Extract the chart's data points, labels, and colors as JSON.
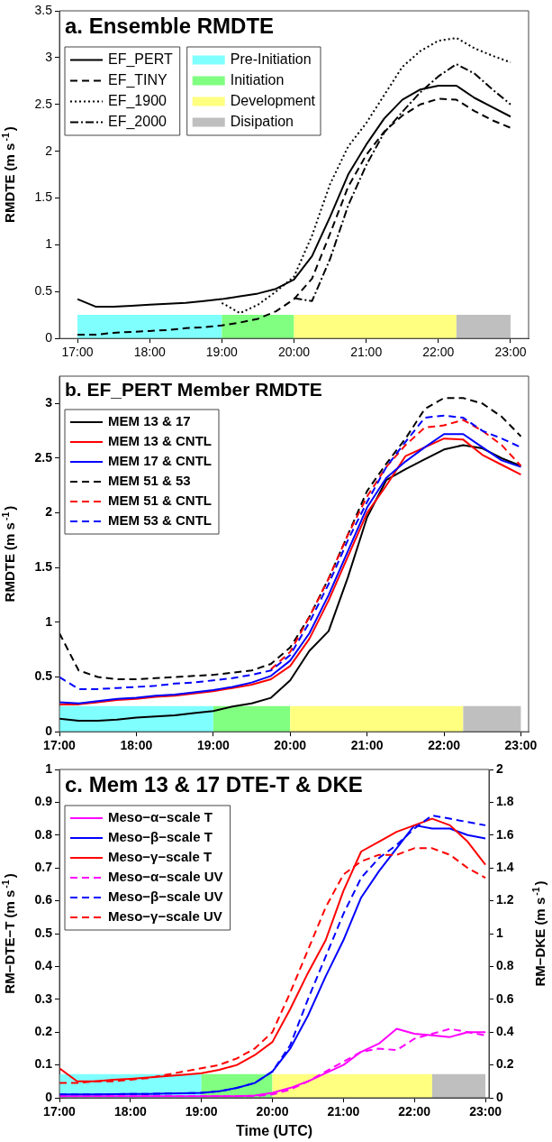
{
  "chart_data": [
    {
      "type": "line",
      "title": "a. Ensemble RMDTE",
      "ylabel": "RMDTE (m s$^{-1}$)",
      "x": [
        17,
        17.25,
        17.5,
        17.75,
        18,
        18.25,
        18.5,
        18.75,
        19,
        19.25,
        19.5,
        19.75,
        20,
        20.25,
        20.5,
        20.75,
        21,
        21.25,
        21.5,
        21.75,
        22,
        22.25,
        22.5,
        22.75,
        23
      ],
      "xlim": [
        16.75,
        23.25
      ],
      "xticks": [
        {
          "value": 17,
          "label": "17:00"
        },
        {
          "value": 18,
          "label": "18:00"
        },
        {
          "value": 19,
          "label": "19:00"
        },
        {
          "value": 20,
          "label": "20:00"
        },
        {
          "value": 21,
          "label": "21:00"
        },
        {
          "value": 22,
          "label": "22:00"
        },
        {
          "value": 23,
          "label": "23:00"
        }
      ],
      "ylim": [
        0,
        3.5
      ],
      "yticks": [
        0,
        0.5,
        1,
        1.5,
        2,
        2.5,
        3,
        3.5
      ],
      "grid": false,
      "marker": "none",
      "legend": "top left",
      "series": [
        {
          "name": "EF_PERT",
          "color": "#000000",
          "line_style": "solid",
          "values": [
            0.42,
            0.34,
            0.34,
            0.35,
            0.36,
            0.37,
            0.38,
            0.4,
            0.42,
            0.45,
            0.48,
            0.53,
            0.63,
            0.88,
            1.3,
            1.75,
            2.07,
            2.35,
            2.55,
            2.66,
            2.7,
            2.7,
            2.57,
            2.47,
            2.37
          ]
        },
        {
          "name": "EF_TINY",
          "color": "#000000",
          "line_style": "dashed",
          "values": [
            0.04,
            0.04,
            0.06,
            0.07,
            0.08,
            0.09,
            0.11,
            0.12,
            0.14,
            0.17,
            0.21,
            0.29,
            0.42,
            0.64,
            1.12,
            1.62,
            1.96,
            2.21,
            2.38,
            2.5,
            2.56,
            2.55,
            2.43,
            2.33,
            2.25
          ]
        },
        {
          "name": "EF_1900",
          "color": "#000000",
          "line_style": "dotted",
          "values": [
            null,
            null,
            null,
            null,
            null,
            null,
            null,
            null,
            0.38,
            0.27,
            0.36,
            0.5,
            0.66,
            1.1,
            1.65,
            2.05,
            2.3,
            2.6,
            2.9,
            3.07,
            3.18,
            3.21,
            3.1,
            3.02,
            2.95
          ]
        },
        {
          "name": "EF_2000",
          "color": "#000000",
          "line_style": "dashdot",
          "values": [
            null,
            null,
            null,
            null,
            null,
            null,
            null,
            null,
            null,
            null,
            null,
            null,
            0.43,
            0.4,
            0.85,
            1.42,
            1.85,
            2.2,
            2.42,
            2.63,
            2.8,
            2.93,
            2.83,
            2.66,
            2.5
          ]
        }
      ],
      "bands": [
        {
          "axis": "x",
          "from": 17,
          "to": 19,
          "label": "Pre-Initiation",
          "color": "#80ffff"
        },
        {
          "axis": "x",
          "from": 19,
          "to": 20,
          "label": "Initiation",
          "color": "#80ff80"
        },
        {
          "axis": "x",
          "from": 20,
          "to": 22.25,
          "label": "Development",
          "color": "#ffff80"
        },
        {
          "axis": "x",
          "from": 22.25,
          "to": 23,
          "label": "Disipation",
          "color": "#bfbfbf"
        }
      ]
    },
    {
      "type": "line",
      "title": "b. EF_PERT Member RMDTE",
      "ylabel": "RMDTE (m s$^{-1}$)",
      "x": [
        17,
        17.25,
        17.5,
        17.75,
        18,
        18.25,
        18.5,
        18.75,
        19,
        19.25,
        19.5,
        19.75,
        20,
        20.25,
        20.5,
        20.75,
        21,
        21.25,
        21.5,
        21.75,
        22,
        22.25,
        22.5,
        22.75,
        23
      ],
      "xlim": [
        17,
        23.1
      ],
      "xticks": [
        {
          "value": 17,
          "label": "17:00"
        },
        {
          "value": 18,
          "label": "18:00"
        },
        {
          "value": 19,
          "label": "19:00"
        },
        {
          "value": 20,
          "label": "20:00"
        },
        {
          "value": 21,
          "label": "21:00"
        },
        {
          "value": 22,
          "label": "22:00"
        },
        {
          "value": 23,
          "label": "23:00"
        }
      ],
      "ylim": [
        0,
        3.25
      ],
      "yticks": [
        0,
        0.5,
        1,
        1.5,
        2,
        2.5,
        3
      ],
      "grid": false,
      "marker": "none",
      "legend": "top left",
      "series": [
        {
          "name": "MEM 13 & 17",
          "color": "#000000",
          "line_style": "solid",
          "values": [
            0.12,
            0.1,
            0.1,
            0.11,
            0.13,
            0.14,
            0.15,
            0.17,
            0.19,
            0.23,
            0.26,
            0.31,
            0.47,
            0.74,
            0.92,
            1.41,
            1.96,
            2.3,
            2.4,
            2.49,
            2.58,
            2.62,
            2.59,
            2.5,
            2.43
          ]
        },
        {
          "name": "MEM 13 & CNTL",
          "color": "#ff0000",
          "line_style": "solid",
          "values": [
            0.25,
            0.25,
            0.27,
            0.29,
            0.3,
            0.32,
            0.33,
            0.35,
            0.37,
            0.4,
            0.43,
            0.48,
            0.6,
            0.85,
            1.2,
            1.6,
            2.0,
            2.25,
            2.52,
            2.6,
            2.68,
            2.67,
            2.53,
            2.44,
            2.35
          ]
        },
        {
          "name": "MEM 17 & CNTL",
          "color": "#0000ff",
          "line_style": "solid",
          "values": [
            0.27,
            0.26,
            0.28,
            0.3,
            0.31,
            0.33,
            0.34,
            0.36,
            0.38,
            0.41,
            0.45,
            0.51,
            0.65,
            0.9,
            1.25,
            1.65,
            2.05,
            2.32,
            2.47,
            2.6,
            2.72,
            2.72,
            2.6,
            2.48,
            2.42
          ]
        },
        {
          "name": "MEM 51 & 53",
          "color": "#000000",
          "line_style": "dashed",
          "values": [
            0.9,
            0.56,
            0.5,
            0.48,
            0.48,
            0.49,
            0.5,
            0.51,
            0.52,
            0.54,
            0.56,
            0.62,
            0.77,
            1.05,
            1.4,
            1.8,
            2.2,
            2.45,
            2.68,
            2.95,
            3.05,
            3.05,
            3.0,
            2.88,
            2.7
          ]
        },
        {
          "name": "MEM 51 & CNTL",
          "color": "#ff0000",
          "line_style": "dashed",
          "values": [
            null,
            null,
            null,
            null,
            null,
            null,
            null,
            null,
            null,
            null,
            null,
            0.57,
            0.73,
            1.05,
            1.4,
            1.8,
            2.15,
            2.42,
            2.62,
            2.78,
            2.8,
            2.85,
            2.75,
            2.62,
            2.43
          ]
        },
        {
          "name": "MEM 53 & CNTL",
          "color": "#0000ff",
          "line_style": "dashed",
          "values": [
            0.5,
            0.39,
            0.39,
            0.4,
            0.41,
            0.42,
            0.44,
            0.45,
            0.47,
            0.49,
            0.52,
            0.56,
            0.7,
            1.0,
            1.35,
            1.75,
            2.1,
            2.42,
            2.65,
            2.87,
            2.89,
            2.87,
            2.75,
            2.68,
            2.6
          ]
        }
      ],
      "bands": [
        {
          "axis": "x",
          "from": 17,
          "to": 19,
          "color": "#80ffff"
        },
        {
          "axis": "x",
          "from": 19,
          "to": 20,
          "color": "#80ff80"
        },
        {
          "axis": "x",
          "from": 20,
          "to": 22.25,
          "color": "#ffff80"
        },
        {
          "axis": "x",
          "from": 22.25,
          "to": 23,
          "color": "#bfbfbf"
        }
      ]
    },
    {
      "type": "line",
      "title": "c. Mem 13 & 17 DTE-T & DKE",
      "xlabel": "Time (UTC)",
      "ylabel": "RM−DTE−T (m s$^{-1}$)",
      "y2label": "RM−DKE (m s$^{-1}$)",
      "x": [
        17,
        17.25,
        17.5,
        17.75,
        18,
        18.25,
        18.5,
        18.75,
        19,
        19.25,
        19.5,
        19.75,
        20,
        20.25,
        20.5,
        20.75,
        21,
        21.25,
        21.5,
        21.75,
        22,
        22.25,
        22.5,
        22.75,
        23
      ],
      "xlim": [
        17,
        23.05
      ],
      "xticks": [
        {
          "value": 17,
          "label": "17:00"
        },
        {
          "value": 18,
          "label": "18:00"
        },
        {
          "value": 19,
          "label": "19:00"
        },
        {
          "value": 20,
          "label": "20:00"
        },
        {
          "value": 21,
          "label": "21:00"
        },
        {
          "value": 22,
          "label": "22:00"
        },
        {
          "value": 23,
          "label": "23:00"
        }
      ],
      "ylim": [
        0,
        1
      ],
      "yticks": [
        0,
        0.1,
        0.2,
        0.3,
        0.4,
        0.5,
        0.6,
        0.7,
        0.8,
        0.9,
        1
      ],
      "y2lim": [
        0,
        2
      ],
      "y2ticks": [
        0,
        0.2,
        0.4,
        0.6,
        0.8,
        1,
        1.2,
        1.4,
        1.6,
        1.8,
        2
      ],
      "grid": false,
      "marker": "none",
      "legend": "top left",
      "series": [
        {
          "name": "Meso−α−scale T",
          "color": "#ff00ff",
          "line_style": "solid",
          "values": [
            0.005,
            0.005,
            0.005,
            0.005,
            0.005,
            0.005,
            0.005,
            0.005,
            0.005,
            0.005,
            0.005,
            0.007,
            0.015,
            0.03,
            0.05,
            0.075,
            0.1,
            0.14,
            0.165,
            0.21,
            0.195,
            0.19,
            0.185,
            0.2,
            0.2
          ]
        },
        {
          "name": "Meso−β−scale T",
          "color": "#0000ff",
          "line_style": "solid",
          "values": [
            0.01,
            0.01,
            0.01,
            0.011,
            0.012,
            0.012,
            0.013,
            0.014,
            0.015,
            0.02,
            0.03,
            0.045,
            0.08,
            0.15,
            0.25,
            0.37,
            0.48,
            0.61,
            0.69,
            0.76,
            0.83,
            0.82,
            0.82,
            0.8,
            0.79
          ]
        },
        {
          "name": "Meso−γ−scale T",
          "color": "#ff0000",
          "line_style": "solid",
          "values": [
            0.09,
            0.05,
            0.05,
            0.055,
            0.058,
            0.062,
            0.066,
            0.07,
            0.075,
            0.085,
            0.1,
            0.13,
            0.17,
            0.27,
            0.38,
            0.48,
            0.63,
            0.75,
            0.78,
            0.81,
            0.83,
            0.85,
            0.83,
            0.78,
            0.71
          ]
        },
        {
          "name": "Meso−α−scale UV",
          "color": "#ff00ff",
          "line_style": "dashed",
          "axis": "y2",
          "values": [
            0.01,
            0.01,
            0.01,
            0.01,
            0.01,
            0.01,
            0.01,
            0.01,
            0.01,
            0.01,
            0.01,
            0.01,
            0.02,
            0.05,
            0.1,
            0.16,
            0.22,
            0.28,
            0.3,
            0.29,
            0.36,
            0.39,
            0.42,
            0.4,
            0.38
          ]
        },
        {
          "name": "Meso−β−scale UV",
          "color": "#0000ff",
          "line_style": "dashed",
          "axis": "y2",
          "values": [
            0.02,
            0.02,
            0.02,
            0.022,
            0.024,
            0.024,
            0.026,
            0.028,
            0.03,
            0.04,
            0.06,
            0.09,
            0.16,
            0.32,
            0.6,
            0.86,
            1.12,
            1.34,
            1.46,
            1.54,
            1.64,
            1.72,
            1.7,
            1.68,
            1.66
          ]
        },
        {
          "name": "Meso−γ−scale UV",
          "color": "#ff0000",
          "line_style": "dashed",
          "axis": "y2",
          "values": [
            0.09,
            0.09,
            0.1,
            0.1,
            0.11,
            0.12,
            0.14,
            0.16,
            0.18,
            0.2,
            0.24,
            0.3,
            0.4,
            0.64,
            0.9,
            1.16,
            1.36,
            1.44,
            1.48,
            1.48,
            1.52,
            1.52,
            1.48,
            1.4,
            1.34
          ]
        }
      ],
      "bands": [
        {
          "axis": "x",
          "from": 17,
          "to": 19,
          "color": "#80ffff"
        },
        {
          "axis": "x",
          "from": 19,
          "to": 20,
          "color": "#80ff80"
        },
        {
          "axis": "x",
          "from": 20,
          "to": 22.25,
          "color": "#ffff80"
        },
        {
          "axis": "x",
          "from": 22.25,
          "to": 23,
          "color": "#bfbfbf"
        }
      ]
    }
  ]
}
